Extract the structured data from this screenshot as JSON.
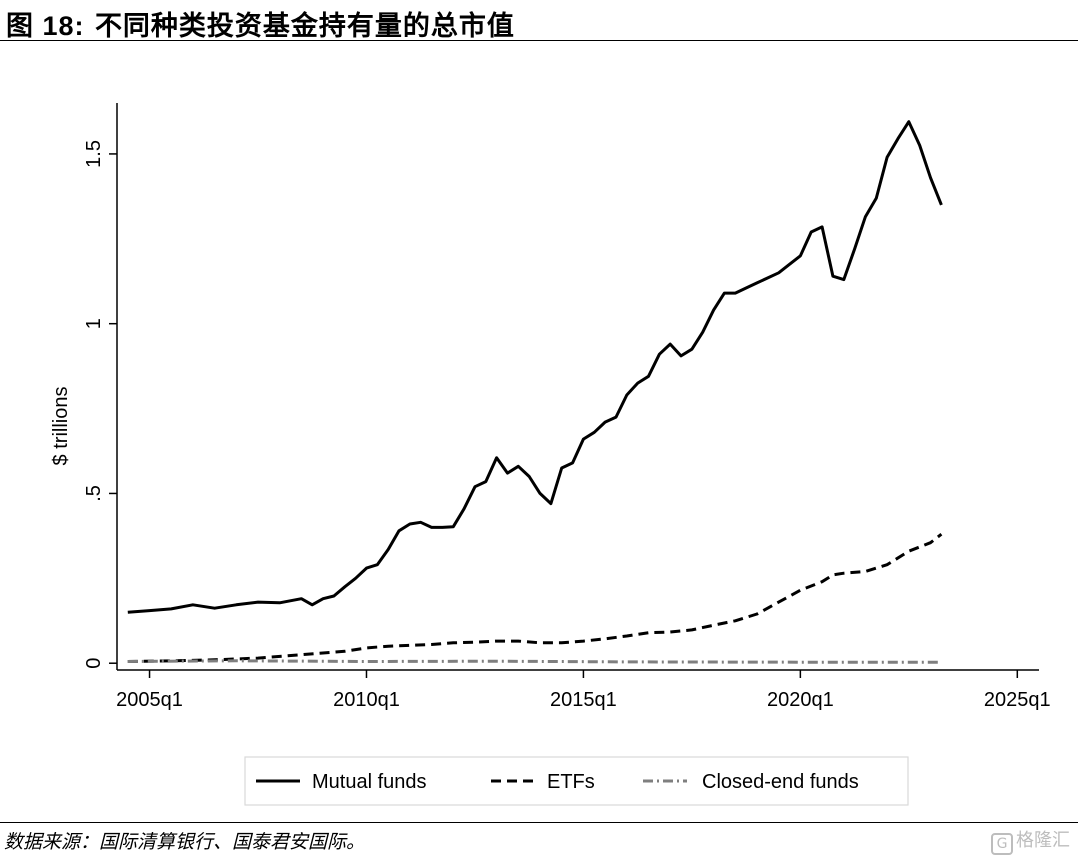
{
  "figure": {
    "label": "图 18:",
    "caption": "不同种类投资基金持有量的总市值",
    "source": "数据来源：国际清算银行、国泰君安国际。",
    "watermark": "格隆汇"
  },
  "chart_data": {
    "type": "line",
    "title": "",
    "xlabel": "",
    "ylabel": "$ trillions",
    "xlim": [
      2004.25,
      2025.5
    ],
    "ylim": [
      -0.02,
      1.65
    ],
    "x_ticks": [
      2005,
      2010,
      2015,
      2020,
      2025
    ],
    "x_tick_labels": [
      "2005q1",
      "2010q1",
      "2015q1",
      "2020q1",
      "2025q1"
    ],
    "y_ticks": [
      0,
      0.5,
      1,
      1.5
    ],
    "y_tick_labels": [
      "0",
      ".5",
      "1",
      "1.5"
    ],
    "grid": false,
    "legend_position": "bottom",
    "colors": {
      "mutual": "#000000",
      "etf": "#000000",
      "closed": "#7f7f7f"
    },
    "series": [
      {
        "name": "Mutual funds",
        "style": "solid",
        "points": [
          [
            2004.5,
            0.15
          ],
          [
            2005.0,
            0.155
          ],
          [
            2005.5,
            0.16
          ],
          [
            2006.0,
            0.172
          ],
          [
            2006.5,
            0.162
          ],
          [
            2007.0,
            0.172
          ],
          [
            2007.5,
            0.18
          ],
          [
            2008.0,
            0.178
          ],
          [
            2008.5,
            0.19
          ],
          [
            2008.75,
            0.172
          ],
          [
            2009.0,
            0.19
          ],
          [
            2009.25,
            0.198
          ],
          [
            2009.5,
            0.225
          ],
          [
            2009.75,
            0.25
          ],
          [
            2010.0,
            0.28
          ],
          [
            2010.25,
            0.29
          ],
          [
            2010.5,
            0.335
          ],
          [
            2010.75,
            0.39
          ],
          [
            2011.0,
            0.41
          ],
          [
            2011.25,
            0.415
          ],
          [
            2011.5,
            0.4
          ],
          [
            2011.75,
            0.4
          ],
          [
            2012.0,
            0.402
          ],
          [
            2012.25,
            0.455
          ],
          [
            2012.5,
            0.52
          ],
          [
            2012.75,
            0.535
          ],
          [
            2013.0,
            0.605
          ],
          [
            2013.25,
            0.56
          ],
          [
            2013.5,
            0.58
          ],
          [
            2013.75,
            0.55
          ],
          [
            2014.0,
            0.5
          ],
          [
            2014.25,
            0.47
          ],
          [
            2014.5,
            0.575
          ],
          [
            2014.75,
            0.59
          ],
          [
            2015.0,
            0.66
          ],
          [
            2015.25,
            0.68
          ],
          [
            2015.5,
            0.71
          ],
          [
            2015.75,
            0.725
          ],
          [
            2016.0,
            0.79
          ],
          [
            2016.25,
            0.825
          ],
          [
            2016.5,
            0.845
          ],
          [
            2016.75,
            0.91
          ],
          [
            2017.0,
            0.94
          ],
          [
            2017.25,
            0.905
          ],
          [
            2017.5,
            0.925
          ],
          [
            2017.75,
            0.975
          ],
          [
            2018.0,
            1.04
          ],
          [
            2018.25,
            1.09
          ],
          [
            2018.5,
            1.09
          ],
          [
            2018.75,
            1.105
          ],
          [
            2019.0,
            1.12
          ],
          [
            2019.25,
            1.135
          ],
          [
            2019.5,
            1.15
          ],
          [
            2019.75,
            1.175
          ],
          [
            2020.0,
            1.2
          ],
          [
            2020.25,
            1.27
          ],
          [
            2020.5,
            1.285
          ],
          [
            2020.75,
            1.14
          ],
          [
            2021.0,
            1.13
          ],
          [
            2021.25,
            1.22
          ],
          [
            2021.5,
            1.315
          ],
          [
            2021.75,
            1.37
          ],
          [
            2022.0,
            1.49
          ],
          [
            2022.25,
            1.545
          ],
          [
            2022.5,
            1.595
          ],
          [
            2022.75,
            1.525
          ],
          [
            2023.0,
            1.43
          ],
          [
            2023.25,
            1.35
          ]
        ]
      },
      {
        "name": "ETFs",
        "style": "dashed",
        "points": [
          [
            2004.5,
            0.005
          ],
          [
            2005.5,
            0.007
          ],
          [
            2006.5,
            0.01
          ],
          [
            2007.5,
            0.015
          ],
          [
            2008.5,
            0.025
          ],
          [
            2009.5,
            0.035
          ],
          [
            2010.0,
            0.045
          ],
          [
            2010.5,
            0.05
          ],
          [
            2011.5,
            0.055
          ],
          [
            2012.0,
            0.06
          ],
          [
            2012.5,
            0.062
          ],
          [
            2013.0,
            0.065
          ],
          [
            2013.5,
            0.065
          ],
          [
            2014.0,
            0.06
          ],
          [
            2014.5,
            0.06
          ],
          [
            2015.0,
            0.065
          ],
          [
            2015.5,
            0.072
          ],
          [
            2016.0,
            0.08
          ],
          [
            2016.5,
            0.09
          ],
          [
            2017.0,
            0.092
          ],
          [
            2017.5,
            0.098
          ],
          [
            2018.0,
            0.112
          ],
          [
            2018.5,
            0.125
          ],
          [
            2019.0,
            0.145
          ],
          [
            2019.5,
            0.18
          ],
          [
            2020.0,
            0.215
          ],
          [
            2020.5,
            0.24
          ],
          [
            2020.75,
            0.26
          ],
          [
            2021.0,
            0.265
          ],
          [
            2021.5,
            0.27
          ],
          [
            2022.0,
            0.29
          ],
          [
            2022.5,
            0.33
          ],
          [
            2023.0,
            0.355
          ],
          [
            2023.25,
            0.38
          ]
        ]
      },
      {
        "name": "Closed-end funds",
        "style": "dash-dot",
        "points": [
          [
            2004.5,
            0.005
          ],
          [
            2007.0,
            0.007
          ],
          [
            2010.0,
            0.005
          ],
          [
            2013.0,
            0.006
          ],
          [
            2016.0,
            0.004
          ],
          [
            2020.0,
            0.003
          ],
          [
            2023.25,
            0.003
          ]
        ]
      }
    ]
  }
}
